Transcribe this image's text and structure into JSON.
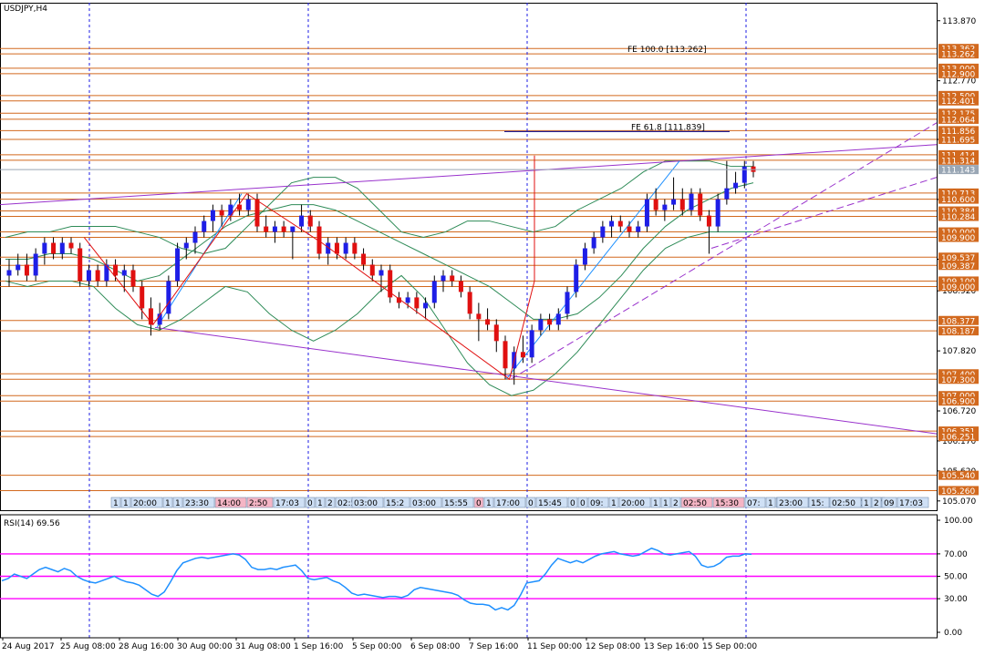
{
  "window": {
    "symbol_label": "USDJPY,H4"
  },
  "colors": {
    "bull": "#1e1ee6",
    "bear": "#e01010",
    "level": "#d2691e",
    "vgrid": "#1e1ee6",
    "fan": "#9932cc",
    "bands": "#2e8b57",
    "zigzag": "#e01010",
    "rsi": "#1e90ff",
    "rsi_level": "#ff00ff",
    "fe_line": "#00008b",
    "current_tag": "#9aa7b5"
  },
  "chart_data": {
    "type": "candlestick",
    "symbol": "USDJPY",
    "timeframe": "H4",
    "price_axis": {
      "ticks": [
        "113.870",
        "112.770",
        "111.695",
        "110.595",
        "109.500",
        "108.920",
        "107.820",
        "106.720",
        "106.170",
        "105.620",
        "105.070"
      ],
      "ylim": [
        104.9,
        114.2
      ]
    },
    "x_axis_labels": [
      "24 Aug 2017",
      "25 Aug 08:00",
      "28 Aug 16:00",
      "30 Aug 00:00",
      "31 Aug 08:00",
      "1 Sep 16:00",
      "5 Sep 00:00",
      "6 Sep 08:00",
      "7 Sep 16:00",
      "11 Sep 00:00",
      "12 Sep 08:00",
      "13 Sep 16:00",
      "15 Sep 00:00"
    ],
    "levels": [
      {
        "price": 113.362,
        "label": "113.362"
      },
      {
        "price": 113.262,
        "label": "113.262"
      },
      {
        "price": 113.0,
        "label": "113.000"
      },
      {
        "price": 112.9,
        "label": "112.900"
      },
      {
        "price": 112.5,
        "label": "112.500"
      },
      {
        "price": 112.401,
        "label": "112.401"
      },
      {
        "price": 112.175,
        "label": "112.175"
      },
      {
        "price": 112.064,
        "label": "112.064"
      },
      {
        "price": 111.856,
        "label": "111.856"
      },
      {
        "price": 111.695,
        "label": "111.695"
      },
      {
        "price": 111.414,
        "label": "111.414"
      },
      {
        "price": 111.314,
        "label": "111.314"
      },
      {
        "price": 110.713,
        "label": "110.713"
      },
      {
        "price": 110.6,
        "label": "110.600"
      },
      {
        "price": 110.384,
        "label": "110.384"
      },
      {
        "price": 110.284,
        "label": "110.284"
      },
      {
        "price": 110.0,
        "label": "110.000"
      },
      {
        "price": 109.9,
        "label": "109.900"
      },
      {
        "price": 109.537,
        "label": "109.537"
      },
      {
        "price": 109.387,
        "label": "109.387"
      },
      {
        "price": 109.1,
        "label": "109.100"
      },
      {
        "price": 109.0,
        "label": "109.000"
      },
      {
        "price": 108.377,
        "label": "108.377"
      },
      {
        "price": 108.187,
        "label": "108.187"
      },
      {
        "price": 107.4,
        "label": "107.400"
      },
      {
        "price": 107.3,
        "label": "107.300"
      },
      {
        "price": 107.0,
        "label": "107.000"
      },
      {
        "price": 106.9,
        "label": "106.900"
      },
      {
        "price": 106.351,
        "label": "106.351"
      },
      {
        "price": 106.251,
        "label": "106.251"
      },
      {
        "price": 105.54,
        "label": "105.540"
      },
      {
        "price": 105.26,
        "label": "105.260"
      }
    ],
    "current_price": {
      "value": 111.143,
      "label": "111.143"
    },
    "annotations": [
      {
        "text": "FE 100.0 [113.262]",
        "price": 113.262
      },
      {
        "text": "FE 61.8 [111.839]",
        "price": 111.839
      }
    ],
    "candles": [
      {
        "o": 109.2,
        "h": 109.5,
        "l": 109.0,
        "c": 109.3
      },
      {
        "o": 109.3,
        "h": 109.6,
        "l": 109.2,
        "c": 109.4
      },
      {
        "o": 109.4,
        "h": 109.6,
        "l": 109.1,
        "c": 109.2
      },
      {
        "o": 109.2,
        "h": 109.7,
        "l": 109.1,
        "c": 109.6
      },
      {
        "o": 109.6,
        "h": 109.9,
        "l": 109.4,
        "c": 109.8
      },
      {
        "o": 109.8,
        "h": 109.9,
        "l": 109.5,
        "c": 109.6
      },
      {
        "o": 109.6,
        "h": 109.9,
        "l": 109.5,
        "c": 109.8
      },
      {
        "o": 109.8,
        "h": 109.9,
        "l": 109.6,
        "c": 109.7
      },
      {
        "o": 109.7,
        "h": 109.8,
        "l": 109.0,
        "c": 109.1
      },
      {
        "o": 109.1,
        "h": 109.4,
        "l": 109.0,
        "c": 109.3
      },
      {
        "o": 109.3,
        "h": 109.4,
        "l": 109.0,
        "c": 109.1
      },
      {
        "o": 109.1,
        "h": 109.5,
        "l": 109.0,
        "c": 109.4
      },
      {
        "o": 109.4,
        "h": 109.5,
        "l": 109.1,
        "c": 109.2
      },
      {
        "o": 109.2,
        "h": 109.4,
        "l": 108.9,
        "c": 109.3
      },
      {
        "o": 109.3,
        "h": 109.4,
        "l": 108.9,
        "c": 109.0
      },
      {
        "o": 109.0,
        "h": 109.1,
        "l": 108.4,
        "c": 108.6
      },
      {
        "o": 108.6,
        "h": 108.8,
        "l": 108.1,
        "c": 108.3
      },
      {
        "o": 108.3,
        "h": 108.7,
        "l": 108.2,
        "c": 108.5
      },
      {
        "o": 108.5,
        "h": 109.2,
        "l": 108.4,
        "c": 109.1
      },
      {
        "o": 109.1,
        "h": 109.8,
        "l": 109.0,
        "c": 109.7
      },
      {
        "o": 109.7,
        "h": 109.9,
        "l": 109.5,
        "c": 109.8
      },
      {
        "o": 109.8,
        "h": 110.1,
        "l": 109.6,
        "c": 110.0
      },
      {
        "o": 110.0,
        "h": 110.3,
        "l": 109.9,
        "c": 110.2
      },
      {
        "o": 110.2,
        "h": 110.5,
        "l": 110.0,
        "c": 110.4
      },
      {
        "o": 110.4,
        "h": 110.5,
        "l": 110.1,
        "c": 110.3
      },
      {
        "o": 110.3,
        "h": 110.6,
        "l": 110.2,
        "c": 110.5
      },
      {
        "o": 110.5,
        "h": 110.7,
        "l": 110.3,
        "c": 110.4
      },
      {
        "o": 110.4,
        "h": 110.7,
        "l": 110.3,
        "c": 110.6
      },
      {
        "o": 110.6,
        "h": 110.7,
        "l": 110.0,
        "c": 110.1
      },
      {
        "o": 110.1,
        "h": 110.3,
        "l": 109.9,
        "c": 110.0
      },
      {
        "o": 110.0,
        "h": 110.2,
        "l": 109.8,
        "c": 110.1
      },
      {
        "o": 110.1,
        "h": 110.2,
        "l": 109.9,
        "c": 110.0
      },
      {
        "o": 110.0,
        "h": 110.1,
        "l": 109.5,
        "c": 110.1
      },
      {
        "o": 110.1,
        "h": 110.5,
        "l": 110.0,
        "c": 110.3
      },
      {
        "o": 110.3,
        "h": 110.4,
        "l": 110.0,
        "c": 110.1
      },
      {
        "o": 110.1,
        "h": 110.2,
        "l": 109.5,
        "c": 109.6
      },
      {
        "o": 109.6,
        "h": 109.9,
        "l": 109.4,
        "c": 109.8
      },
      {
        "o": 109.8,
        "h": 109.9,
        "l": 109.5,
        "c": 109.6
      },
      {
        "o": 109.6,
        "h": 109.9,
        "l": 109.5,
        "c": 109.8
      },
      {
        "o": 109.8,
        "h": 109.9,
        "l": 109.5,
        "c": 109.6
      },
      {
        "o": 109.6,
        "h": 109.7,
        "l": 109.3,
        "c": 109.4
      },
      {
        "o": 109.4,
        "h": 109.5,
        "l": 109.1,
        "c": 109.2
      },
      {
        "o": 109.2,
        "h": 109.4,
        "l": 108.9,
        "c": 109.3
      },
      {
        "o": 109.3,
        "h": 109.4,
        "l": 108.7,
        "c": 108.8
      },
      {
        "o": 108.8,
        "h": 108.9,
        "l": 108.6,
        "c": 108.7
      },
      {
        "o": 108.7,
        "h": 108.9,
        "l": 108.6,
        "c": 108.8
      },
      {
        "o": 108.8,
        "h": 108.9,
        "l": 108.5,
        "c": 108.6
      },
      {
        "o": 108.6,
        "h": 108.8,
        "l": 108.4,
        "c": 108.7
      },
      {
        "o": 108.7,
        "h": 109.2,
        "l": 108.6,
        "c": 109.1
      },
      {
        "o": 109.1,
        "h": 109.3,
        "l": 108.9,
        "c": 109.2
      },
      {
        "o": 109.2,
        "h": 109.3,
        "l": 109.0,
        "c": 109.1
      },
      {
        "o": 109.1,
        "h": 109.2,
        "l": 108.8,
        "c": 108.9
      },
      {
        "o": 108.9,
        "h": 109.0,
        "l": 108.4,
        "c": 108.5
      },
      {
        "o": 108.5,
        "h": 108.7,
        "l": 108.0,
        "c": 108.4
      },
      {
        "o": 108.4,
        "h": 108.6,
        "l": 108.2,
        "c": 108.3
      },
      {
        "o": 108.3,
        "h": 108.4,
        "l": 107.8,
        "c": 108.0
      },
      {
        "o": 108.0,
        "h": 108.1,
        "l": 107.3,
        "c": 107.5
      },
      {
        "o": 107.5,
        "h": 107.9,
        "l": 107.2,
        "c": 107.8
      },
      {
        "o": 107.8,
        "h": 108.1,
        "l": 107.6,
        "c": 107.7
      },
      {
        "o": 107.7,
        "h": 108.3,
        "l": 107.6,
        "c": 108.2
      },
      {
        "o": 108.2,
        "h": 108.5,
        "l": 108.1,
        "c": 108.4
      },
      {
        "o": 108.4,
        "h": 108.5,
        "l": 108.2,
        "c": 108.3
      },
      {
        "o": 108.3,
        "h": 108.6,
        "l": 108.2,
        "c": 108.5
      },
      {
        "o": 108.5,
        "h": 109.0,
        "l": 108.4,
        "c": 108.9
      },
      {
        "o": 108.9,
        "h": 109.5,
        "l": 108.8,
        "c": 109.4
      },
      {
        "o": 109.4,
        "h": 109.8,
        "l": 109.3,
        "c": 109.7
      },
      {
        "o": 109.7,
        "h": 110.0,
        "l": 109.6,
        "c": 109.9
      },
      {
        "o": 109.9,
        "h": 110.2,
        "l": 109.8,
        "c": 110.1
      },
      {
        "o": 110.1,
        "h": 110.3,
        "l": 109.9,
        "c": 110.2
      },
      {
        "o": 110.2,
        "h": 110.3,
        "l": 110.0,
        "c": 110.1
      },
      {
        "o": 110.1,
        "h": 110.2,
        "l": 109.9,
        "c": 110.0
      },
      {
        "o": 110.0,
        "h": 110.2,
        "l": 109.9,
        "c": 110.1
      },
      {
        "o": 110.1,
        "h": 110.7,
        "l": 110.0,
        "c": 110.6
      },
      {
        "o": 110.6,
        "h": 110.8,
        "l": 110.3,
        "c": 110.4
      },
      {
        "o": 110.4,
        "h": 110.6,
        "l": 110.2,
        "c": 110.5
      },
      {
        "o": 110.5,
        "h": 111.0,
        "l": 110.4,
        "c": 110.6
      },
      {
        "o": 110.6,
        "h": 110.8,
        "l": 110.3,
        "c": 110.4
      },
      {
        "o": 110.4,
        "h": 110.8,
        "l": 110.3,
        "c": 110.7
      },
      {
        "o": 110.7,
        "h": 110.8,
        "l": 110.2,
        "c": 110.3
      },
      {
        "o": 110.3,
        "h": 110.4,
        "l": 109.6,
        "c": 110.1
      },
      {
        "o": 110.1,
        "h": 110.7,
        "l": 110.0,
        "c": 110.6
      },
      {
        "o": 110.6,
        "h": 111.3,
        "l": 110.5,
        "c": 110.8
      },
      {
        "o": 110.8,
        "h": 111.1,
        "l": 110.7,
        "c": 110.9
      },
      {
        "o": 110.9,
        "h": 111.3,
        "l": 110.8,
        "c": 111.2
      },
      {
        "o": 111.2,
        "h": 111.3,
        "l": 111.0,
        "c": 111.1
      }
    ],
    "bands": {
      "upper": [
        109.9,
        110.0,
        110.0,
        110.1,
        110.1,
        110.1,
        110.0,
        109.9,
        109.7,
        109.6,
        109.7,
        110.1,
        110.5,
        110.9,
        111.0,
        111.0,
        110.8,
        110.4,
        110.0,
        109.9,
        110.0,
        110.2,
        110.2,
        110.1,
        110.0,
        110.1,
        110.4,
        110.6,
        110.8,
        111.1,
        111.3,
        111.3,
        111.3,
        111.2,
        111.2
      ],
      "middle": [
        109.5,
        109.5,
        109.6,
        109.6,
        109.5,
        109.3,
        109.1,
        109.2,
        109.5,
        109.8,
        110.1,
        110.3,
        110.4,
        110.5,
        110.5,
        110.4,
        110.2,
        110.0,
        109.8,
        109.6,
        109.4,
        109.2,
        109.0,
        108.7,
        108.4,
        108.4,
        108.5,
        108.8,
        109.2,
        109.7,
        110.1,
        110.4,
        110.6,
        110.8,
        110.9
      ],
      "lower": [
        109.1,
        109.0,
        109.1,
        109.1,
        109.0,
        108.6,
        108.3,
        108.2,
        108.4,
        108.7,
        109.0,
        108.9,
        108.5,
        108.2,
        108.0,
        108.2,
        108.5,
        108.9,
        109.2,
        108.8,
        108.2,
        107.6,
        107.2,
        107.0,
        107.1,
        107.4,
        107.8,
        108.3,
        108.8,
        109.3,
        109.7,
        109.9,
        110.0,
        110.0,
        110.0
      ]
    },
    "zigzag": [
      [
        12,
        109.9
      ],
      [
        23,
        108.3
      ],
      [
        38,
        110.7
      ],
      [
        50,
        109.8
      ],
      [
        80,
        107.3
      ],
      [
        104,
        109.1
      ],
      [
        113,
        111.2
      ],
      [
        117,
        109.5
      ],
      [
        119,
        111.4
      ]
    ],
    "rsi": {
      "label": "RSI(14) 69.56",
      "ticks": [
        "100.00",
        "70.00",
        "50.00",
        "30.00",
        "0.00"
      ],
      "levels": [
        70,
        50,
        30
      ],
      "values": [
        46,
        48,
        52,
        50,
        48,
        52,
        56,
        58,
        56,
        54,
        57,
        55,
        50,
        47,
        45,
        44,
        46,
        48,
        50,
        47,
        45,
        44,
        42,
        38,
        34,
        32,
        36,
        45,
        55,
        62,
        64,
        66,
        67,
        66,
        67,
        68,
        69,
        70,
        69,
        65,
        58,
        56,
        56,
        57,
        56,
        58,
        59,
        60,
        55,
        48,
        47,
        48,
        49,
        46,
        44,
        40,
        35,
        33,
        34,
        33,
        32,
        31,
        32,
        32,
        31,
        33,
        38,
        40,
        39,
        38,
        37,
        36,
        35,
        33,
        29,
        26,
        25,
        25,
        24,
        20,
        22,
        20,
        24,
        33,
        44,
        45,
        46,
        52,
        60,
        66,
        64,
        62,
        64,
        62,
        65,
        68,
        70,
        71,
        72,
        70,
        69,
        68,
        69,
        72,
        75,
        73,
        70,
        69,
        70,
        71,
        72,
        68,
        60,
        58,
        59,
        62,
        67,
        68,
        68,
        70,
        69.6
      ],
      "ylim": [
        0,
        100
      ]
    },
    "time_tags": [
      "1",
      "1",
      "20:00",
      "1",
      "1",
      "23:30",
      "14:00",
      "2:50",
      "17:03",
      "0",
      "1",
      "2",
      "02:50",
      "03:00",
      "15:2",
      "03:00",
      "15:55",
      "0",
      "1",
      "17:00",
      "0",
      "15:45",
      "0",
      "0",
      "09:",
      "1",
      "20:00",
      "1",
      "1",
      "2",
      "02:50",
      "15:30",
      "07:",
      "1",
      "17:30",
      "1",
      "1",
      "2",
      "03:00",
      "17",
      "23:00",
      "15:",
      "02:50",
      "1",
      "2",
      "09",
      "17:03"
    ]
  }
}
